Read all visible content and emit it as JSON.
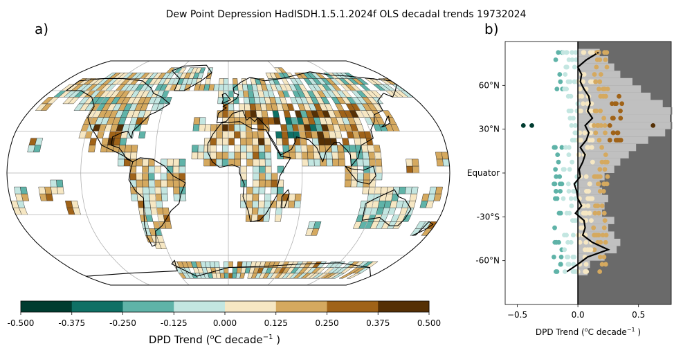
{
  "title": "Dew Point Depression HadISDH.1.5.1.2024f OLS decadal trends 19732024",
  "panel_a": {
    "label": "a)",
    "colorbar": {
      "boundaries": [
        -0.5,
        -0.375,
        -0.25,
        -0.125,
        0.0,
        0.125,
        0.25,
        0.375,
        0.5
      ],
      "tick_labels": [
        "-0.500",
        "-0.375",
        "-0.250",
        "-0.125",
        "0.000",
        "0.125",
        "0.250",
        "0.375",
        "0.500"
      ],
      "colors": [
        "#003c30",
        "#0f7065",
        "#5fb3a8",
        "#c3e6e1",
        "#f6e7c3",
        "#d5a95f",
        "#a06318",
        "#553005"
      ],
      "label": "DPD Trend (",
      "label_sup_o": "o",
      "label_mid": "C decade",
      "label_sup_exp": "−1",
      "label_end": " )"
    }
  },
  "panel_b": {
    "label": "b)",
    "xlabel": "DPD Trend (",
    "xlabel_sup_o": "o",
    "xlabel_mid": "C decade",
    "xlabel_sup_exp": "−1",
    "xlabel_end": " )",
    "ytick_labels": [
      "60°N",
      "30°N",
      "Equator",
      "-30°S",
      "-60°N"
    ],
    "xtick_labels": [
      "−0.5",
      "0.0",
      "0.5"
    ]
  },
  "chart_data": [
    {
      "type": "heatmap",
      "description_source": "gridded map of trends, 5x5 degree boxes, Robinson projection",
      "value_range": [
        -0.5,
        0.5
      ],
      "colormap": "BrBG_r (8 discrete bins)"
    },
    {
      "type": "line",
      "title": "",
      "xlabel": "DPD Trend (oC decade-1 )",
      "xlim": [
        -0.6,
        0.77
      ],
      "ylim": [
        -90,
        90
      ],
      "yticks": [
        60,
        30,
        0,
        -30,
        -60
      ],
      "xticks": [
        -0.5,
        0.0,
        0.5
      ],
      "shading": {
        "negative_side": "#ffffff",
        "positive_side": "#6a6a6a"
      },
      "zonal_mean_line": {
        "lat": [
          -67.5,
          -62.5,
          -57.5,
          -52.5,
          -47.5,
          -42.5,
          -37.5,
          -32.5,
          -27.5,
          -22.5,
          -17.5,
          -12.5,
          -7.5,
          -2.5,
          2.5,
          7.5,
          12.5,
          17.5,
          22.5,
          27.5,
          32.5,
          37.5,
          42.5,
          47.5,
          52.5,
          57.5,
          62.5,
          67.5,
          72.5,
          77.5,
          82.5
        ],
        "trend": [
          -0.09,
          0.0,
          0.08,
          0.25,
          0.12,
          0.04,
          0.06,
          0.05,
          -0.02,
          0.03,
          0.0,
          -0.01,
          -0.03,
          0.02,
          0.01,
          0.04,
          0.06,
          0.02,
          0.07,
          0.09,
          0.06,
          0.12,
          0.08,
          0.1,
          0.09,
          0.05,
          0.02,
          0.03,
          0.0,
          0.07,
          0.17
        ]
      },
      "grey_envelope": {
        "lat": [
          -67.5,
          -62.5,
          -57.5,
          -52.5,
          -47.5,
          -42.5,
          -37.5,
          -32.5,
          -27.5,
          -22.5,
          -17.5,
          -12.5,
          -7.5,
          -2.5,
          2.5,
          7.5,
          12.5,
          17.5,
          22.5,
          27.5,
          32.5,
          37.5,
          42.5,
          47.5,
          52.5,
          57.5,
          62.5,
          67.5,
          72.5,
          77.5,
          82.5
        ],
        "max": [
          0.08,
          0.1,
          0.22,
          0.32,
          0.35,
          0.3,
          0.25,
          0.3,
          0.2,
          0.22,
          0.25,
          0.2,
          0.18,
          0.22,
          0.3,
          0.35,
          0.42,
          0.48,
          0.58,
          0.72,
          0.78,
          0.76,
          0.78,
          0.7,
          0.6,
          0.52,
          0.45,
          0.35,
          0.3,
          0.25,
          0.18
        ]
      }
    }
  ]
}
